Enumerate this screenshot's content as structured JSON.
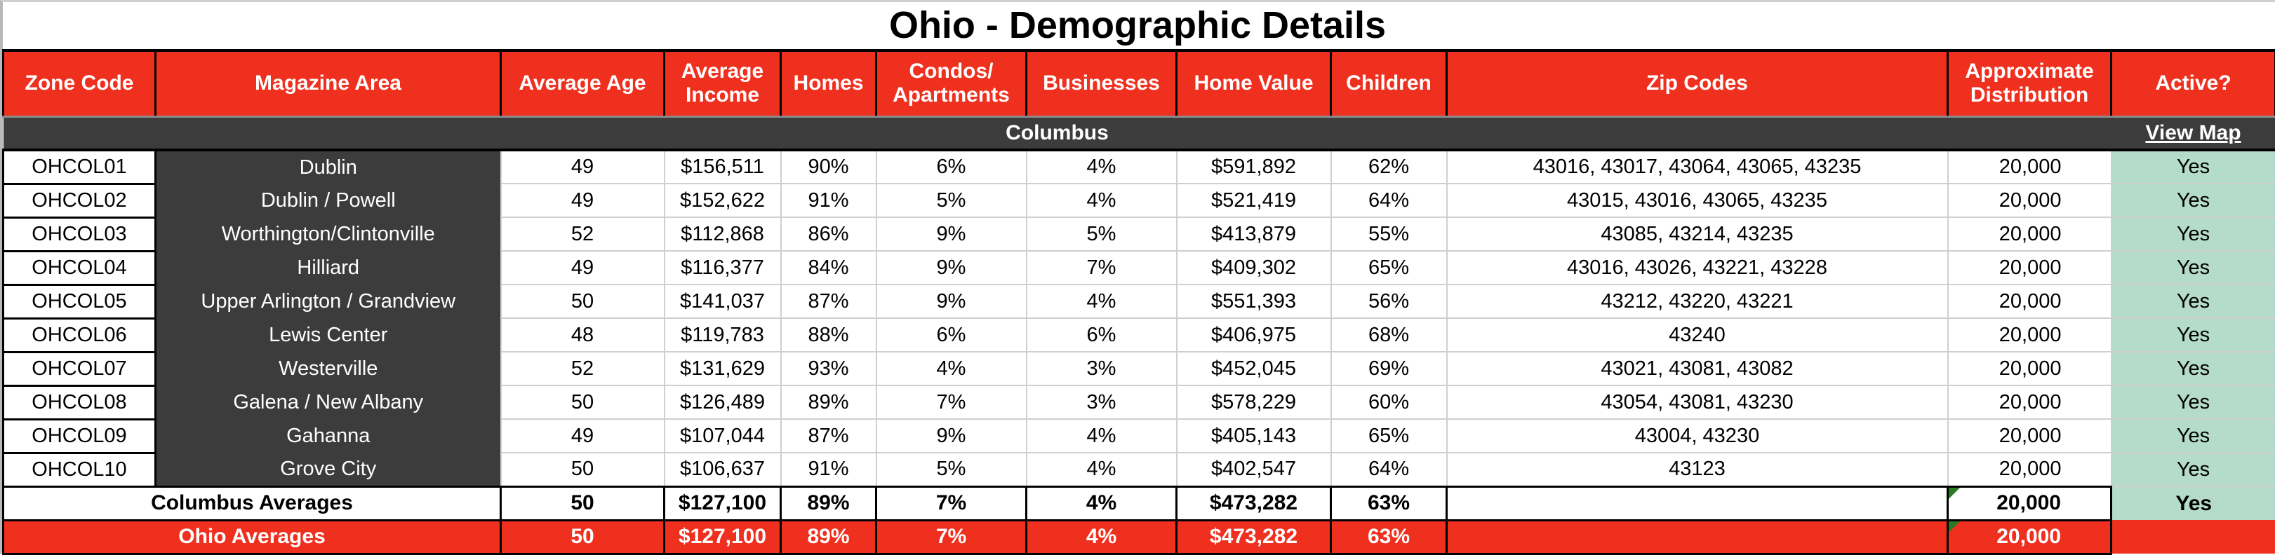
{
  "title": "Ohio - Demographic Details",
  "colors": {
    "header_red": "#f0301f",
    "dark": "#3c3c3c",
    "active_green": "#b5dbcb"
  },
  "headers": {
    "zone_code": "Zone Code",
    "magazine_area": "Magazine Area",
    "average_age": "Average Age",
    "average_income_1": "Average",
    "average_income_2": "Income",
    "homes": "Homes",
    "condos_1": "Condos/",
    "condos_2": "Apartments",
    "businesses": "Businesses",
    "home_value": "Home Value",
    "children": "Children",
    "zip_codes": "Zip Codes",
    "distribution_1": "Approximate",
    "distribution_2": "Distribution",
    "active": "Active?"
  },
  "group": {
    "name": "Columbus",
    "view_map": "View Map"
  },
  "rows": [
    {
      "zone": "OHCOL01",
      "area": "Dublin",
      "age": "49",
      "income": "$156,511",
      "homes": "90%",
      "condos": "6%",
      "businesses": "4%",
      "home_value": "$591,892",
      "children": "62%",
      "zips": "43016, 43017, 43064, 43065, 43235",
      "distribution": "20,000",
      "active": "Yes"
    },
    {
      "zone": "OHCOL02",
      "area": "Dublin / Powell",
      "age": "49",
      "income": "$152,622",
      "homes": "91%",
      "condos": "5%",
      "businesses": "4%",
      "home_value": "$521,419",
      "children": "64%",
      "zips": "43015, 43016, 43065, 43235",
      "distribution": "20,000",
      "active": "Yes"
    },
    {
      "zone": "OHCOL03",
      "area": "Worthington/Clintonville",
      "age": "52",
      "income": "$112,868",
      "homes": "86%",
      "condos": "9%",
      "businesses": "5%",
      "home_value": "$413,879",
      "children": "55%",
      "zips": "43085, 43214, 43235",
      "distribution": "20,000",
      "active": "Yes"
    },
    {
      "zone": "OHCOL04",
      "area": "Hilliard",
      "age": "49",
      "income": "$116,377",
      "homes": "84%",
      "condos": "9%",
      "businesses": "7%",
      "home_value": "$409,302",
      "children": "65%",
      "zips": "43016, 43026, 43221, 43228",
      "distribution": "20,000",
      "active": "Yes"
    },
    {
      "zone": "OHCOL05",
      "area": "Upper Arlington / Grandview",
      "age": "50",
      "income": "$141,037",
      "homes": "87%",
      "condos": "9%",
      "businesses": "4%",
      "home_value": "$551,393",
      "children": "56%",
      "zips": "43212, 43220, 43221",
      "distribution": "20,000",
      "active": "Yes"
    },
    {
      "zone": "OHCOL06",
      "area": "Lewis Center",
      "age": "48",
      "income": "$119,783",
      "homes": "88%",
      "condos": "6%",
      "businesses": "6%",
      "home_value": "$406,975",
      "children": "68%",
      "zips": "43240",
      "distribution": "20,000",
      "active": "Yes"
    },
    {
      "zone": "OHCOL07",
      "area": "Westerville",
      "age": "52",
      "income": "$131,629",
      "homes": "93%",
      "condos": "4%",
      "businesses": "3%",
      "home_value": "$452,045",
      "children": "69%",
      "zips": "43021, 43081, 43082",
      "distribution": "20,000",
      "active": "Yes"
    },
    {
      "zone": "OHCOL08",
      "area": "Galena / New Albany",
      "age": "50",
      "income": "$126,489",
      "homes": "89%",
      "condos": "7%",
      "businesses": "3%",
      "home_value": "$578,229",
      "children": "60%",
      "zips": "43054, 43081, 43230",
      "distribution": "20,000",
      "active": "Yes"
    },
    {
      "zone": "OHCOL09",
      "area": "Gahanna",
      "age": "49",
      "income": "$107,044",
      "homes": "87%",
      "condos": "9%",
      "businesses": "4%",
      "home_value": "$405,143",
      "children": "65%",
      "zips": "43004, 43230",
      "distribution": "20,000",
      "active": "Yes"
    },
    {
      "zone": "OHCOL10",
      "area": "Grove City",
      "age": "50",
      "income": "$106,637",
      "homes": "91%",
      "condos": "5%",
      "businesses": "4%",
      "home_value": "$402,547",
      "children": "64%",
      "zips": "43123",
      "distribution": "20,000",
      "active": "Yes"
    }
  ],
  "columbus_averages": {
    "label": "Columbus Averages",
    "age": "50",
    "income": "$127,100",
    "homes": "89%",
    "condos": "7%",
    "businesses": "4%",
    "home_value": "$473,282",
    "children": "63%",
    "zips": "",
    "distribution": "20,000",
    "active": "Yes"
  },
  "ohio_averages": {
    "label": "Ohio Averages",
    "age": "50",
    "income": "$127,100",
    "homes": "89%",
    "condos": "7%",
    "businesses": "4%",
    "home_value": "$473,282",
    "children": "63%",
    "zips": "",
    "distribution": "20,000",
    "active": ""
  }
}
